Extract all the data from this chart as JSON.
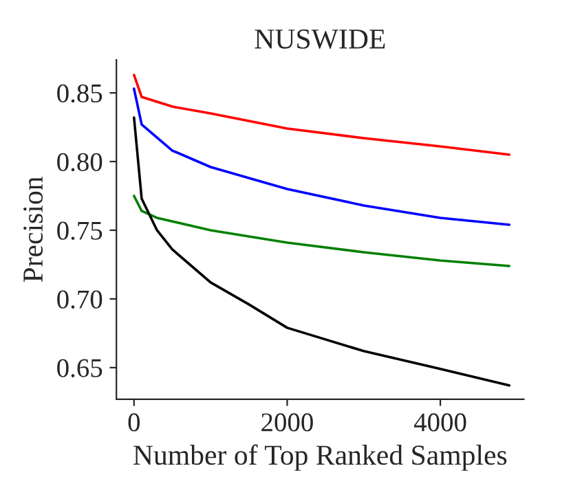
{
  "chart_data": {
    "type": "line",
    "title": "NUSWIDE",
    "xlabel": "Number of Top Ranked Samples",
    "ylabel": "Precision",
    "xlim": [
      -230,
      5090
    ],
    "ylim": [
      0.627,
      0.874
    ],
    "xticks": [
      0,
      2000,
      4000
    ],
    "yticks": [
      0.65,
      {
        "value": 0.7,
        "label": "0.70"
      },
      0.75,
      {
        "value": 0.8,
        "label": "0.80"
      },
      0.85
    ],
    "grid": false,
    "marker": "none",
    "line_style": "solid",
    "series": [
      {
        "color": "#ff0000",
        "x": [
          0,
          100,
          500,
          1000,
          2000,
          3000,
          4000,
          4900
        ],
        "values": [
          0.863,
          0.847,
          0.84,
          0.835,
          0.824,
          0.817,
          0.811,
          0.805
        ]
      },
      {
        "color": "#0000ff",
        "x": [
          0,
          100,
          500,
          1000,
          2000,
          3000,
          4000,
          4900
        ],
        "values": [
          0.853,
          0.827,
          0.808,
          0.796,
          0.78,
          0.768,
          0.759,
          0.754
        ]
      },
      {
        "color": "#008000",
        "x": [
          0,
          100,
          300,
          1000,
          2000,
          3000,
          4000,
          4900
        ],
        "values": [
          0.775,
          0.764,
          0.759,
          0.75,
          0.741,
          0.734,
          0.728,
          0.724
        ]
      },
      {
        "color": "#000000",
        "x": [
          0,
          100,
          300,
          500,
          1000,
          1500,
          2000,
          3000,
          4000,
          4900
        ],
        "values": [
          0.832,
          0.773,
          0.75,
          0.736,
          0.712,
          0.696,
          0.679,
          0.662,
          0.649,
          0.637
        ]
      }
    ]
  }
}
